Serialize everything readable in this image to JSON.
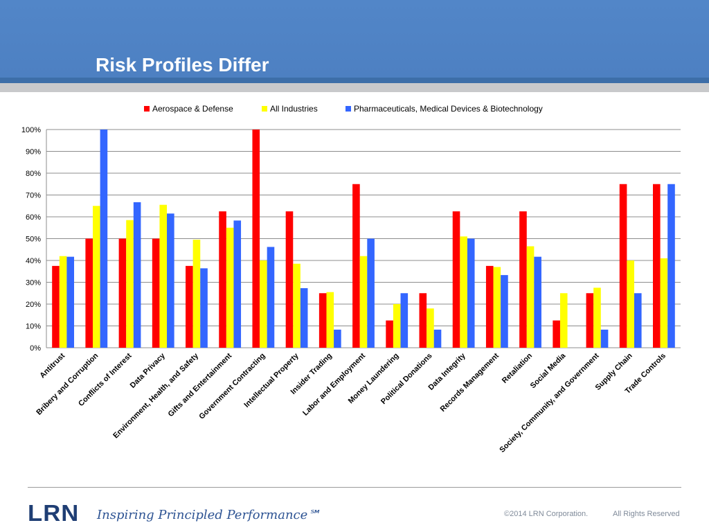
{
  "slide": {
    "title": "Risk Profiles Differ"
  },
  "footer": {
    "logo_text": "LRN",
    "tagline": "Inspiring Principled Performance℠",
    "copyright": "©2014 LRN Corporation.",
    "rights": "All Rights Reserved"
  },
  "colors": {
    "header_blue": "#5286c8",
    "series": [
      "#ff0000",
      "#ffff00",
      "#3366ff"
    ]
  },
  "chart_data": {
    "type": "bar",
    "title": "",
    "xlabel": "",
    "ylabel": "",
    "ylim": [
      0,
      100
    ],
    "yticks": [
      "0%",
      "10%",
      "20%",
      "30%",
      "40%",
      "50%",
      "60%",
      "70%",
      "80%",
      "90%",
      "100%"
    ],
    "grid": true,
    "legend_position": "top",
    "categories": [
      "Antitrust",
      "Bribery and Corruption",
      "Conflicts of Interest",
      "Data Privacy",
      "Environment, Health, and Safety",
      "Gifts and Entertainment",
      "Government Contracting",
      "Intellectual Property",
      "Insider Trading",
      "Labor and Employment",
      "Money Laundering",
      "Political Donations",
      "Data Integrity",
      "Records Management",
      "Retaliation",
      "Social Media",
      "Society, Community, and Government",
      "Supply Chain",
      "Trade Controls"
    ],
    "series": [
      {
        "name": "Aerospace & Defense",
        "color": "#ff0000",
        "values": [
          37.5,
          50,
          50,
          50,
          37.5,
          62.5,
          100,
          62.5,
          25,
          75,
          12.5,
          25,
          62.5,
          37.5,
          62.5,
          12.5,
          25,
          75,
          75
        ]
      },
      {
        "name": "All Industries",
        "color": "#ffff00",
        "values": [
          42,
          65,
          58.5,
          65.5,
          49.5,
          55,
          40,
          38.5,
          25.5,
          42,
          20,
          18,
          51,
          37,
          46.5,
          25,
          27.5,
          40,
          41
        ]
      },
      {
        "name": "Pharmaceuticals, Medical Devices & Biotechnology",
        "color": "#3366ff",
        "values": [
          41.7,
          100,
          66.7,
          61.5,
          36.4,
          58.3,
          46.2,
          27.3,
          8.3,
          50,
          25,
          8.3,
          50,
          33.3,
          41.7,
          0,
          8.3,
          25,
          75
        ]
      }
    ]
  }
}
